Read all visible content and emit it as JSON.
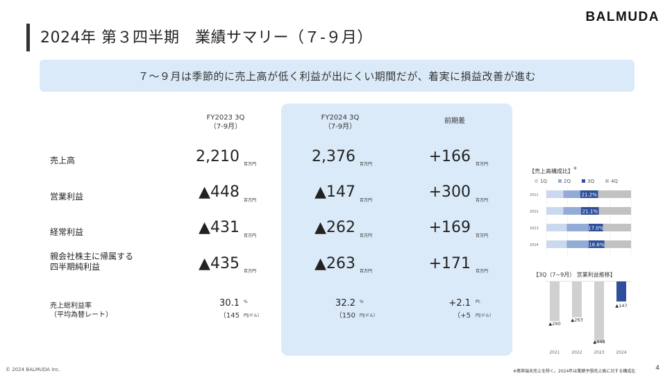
{
  "brand": "BALMUDA",
  "title": "2024年 第３四半期　業績サマリー（７-９月）",
  "banner": "７～９月は季節的に売上高が低く利益が出にくい期間だが、着実に損益改善が進む",
  "columns": [
    {
      "line1": "FY2023 3Q",
      "line2": "（7-9月）"
    },
    {
      "line1": "FY2024 3Q",
      "line2": "（7-9月）"
    },
    {
      "line1": "前期差",
      "line2": ""
    }
  ],
  "rows": [
    {
      "label": "売上高",
      "fy23": "2,210",
      "fy24": "2,376",
      "diff": "+166",
      "unit": "百万円"
    },
    {
      "label": "営業利益",
      "fy23": "▲448",
      "fy24": "▲147",
      "diff": "+300",
      "unit": "百万円"
    },
    {
      "label": "経常利益",
      "fy23": "▲431",
      "fy24": "▲262",
      "diff": "+169",
      "unit": "百万円"
    },
    {
      "label": "親会社株主に帰属する",
      "label2": "四半期純利益",
      "fy23": "▲435",
      "fy24": "▲263",
      "diff": "+171",
      "unit": "百万円"
    }
  ],
  "gross_margin": {
    "label": "売上総利益率",
    "label2": "（平均為替レート）",
    "fy23": "30.1",
    "fy23_unit": "%",
    "fy23_rate": "（145",
    "fy23_rate_unit": "円/ドル）",
    "fy24": "32.2",
    "fy24_unit": "%",
    "fy24_rate": "（150",
    "fy24_rate_unit": "円/ドル）",
    "diff": "+2.1",
    "diff_unit": "Pt.",
    "diff_rate": "（+5",
    "diff_rate_unit": "円/ドル）"
  },
  "chart_data": [
    {
      "type": "bar",
      "orientation": "horizontal",
      "stacked": "percent",
      "title": "【売上高構成比】",
      "title_mark": "※",
      "legend": [
        "1Q",
        "2Q",
        "3Q",
        "4Q"
      ],
      "legend_placement": "top",
      "colors": [
        "#cbd9ee",
        "#93abd6",
        "#2f4f9c",
        "#c2c2c2"
      ],
      "categories": [
        "2021",
        "2022",
        "2023",
        "2024"
      ],
      "series": [
        {
          "name": "1Q",
          "values": [
            20,
            20,
            24,
            24
          ]
        },
        {
          "name": "2Q",
          "values": [
            20,
            21,
            26,
            26
          ]
        },
        {
          "name": "3Q",
          "values": [
            21.2,
            21.1,
            17.0,
            18.6
          ]
        },
        {
          "name": "4Q",
          "values": [
            38.8,
            37.9,
            33.0,
            31.4
          ]
        }
      ],
      "labels": [
        "21.2%",
        "21.1%",
        "17.0%",
        "18.6%"
      ],
      "grid": true
    },
    {
      "type": "bar",
      "title": "【3Q（7~9月） 営業利益推移】",
      "categories": [
        "2021",
        "2022",
        "2023",
        "2024"
      ],
      "values": [
        -290,
        -263,
        -448,
        -147
      ],
      "labels": [
        "▲290",
        "▲263",
        "▲448",
        "▲147"
      ],
      "colors": [
        "#d0d0d0",
        "#d0d0d0",
        "#d0d0d0",
        "#2f4f9c"
      ],
      "grid": true
    }
  ],
  "footer": {
    "copyright": "© 2024 BALMUDA Inc.",
    "note": "※携帯端末売上を除く。2024年は業績予想売上高に対する構成比",
    "page": "4"
  }
}
